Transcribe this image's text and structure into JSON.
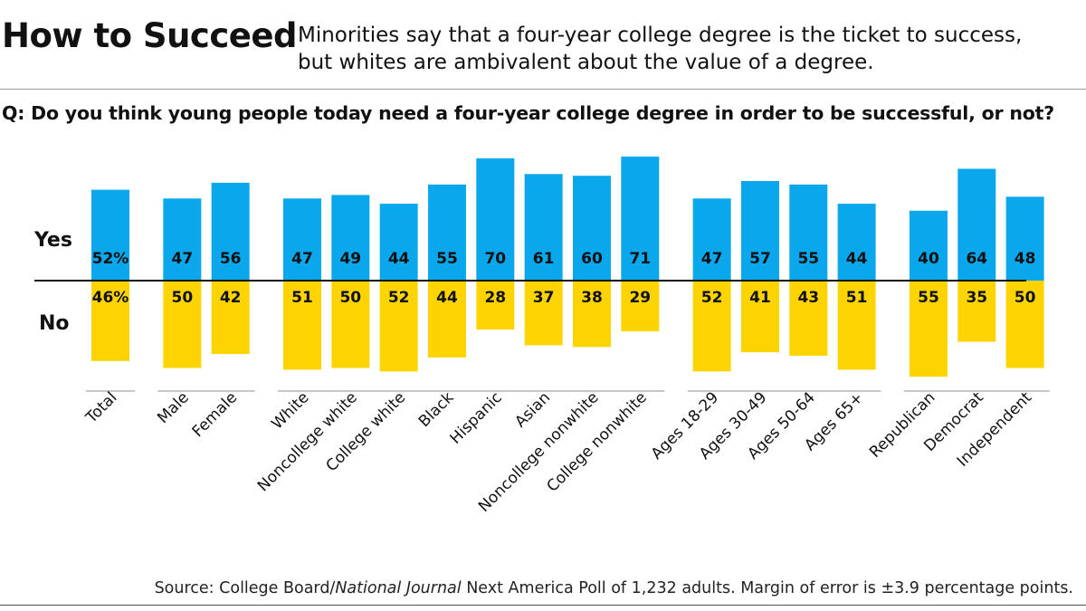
{
  "header": {
    "title": "How to Succeed",
    "subtitle_line1": "Minorities say that a four-year college degree is the ticket to success,",
    "subtitle_line2": "but whites are ambivalent about the value of a degree."
  },
  "question": "Q: Do you think young people today need a four-year college degree in order to be successful, or not?",
  "source": {
    "prefix": "Source: College Board/",
    "publication": "National Journal",
    "suffix": " Next America Poll of 1,232 adults. Margin of error is ±3.9 percentage points."
  },
  "colors": {
    "yes": "#0aa7ec",
    "no": "#fdd400",
    "axis": "#111111",
    "group_rule": "#8c8c8c"
  },
  "chart_data": {
    "type": "bar",
    "orientation": "diverging",
    "yes_label": "Yes",
    "no_label": "No",
    "categories": [
      "Total",
      "Male",
      "Female",
      "White",
      "Noncollege white",
      "College white",
      "Black",
      "Hispanic",
      "Asian",
      "Noncollege nonwhite",
      "College nonwhite",
      "Ages 18-29",
      "Ages 30-49",
      "Ages 50-64",
      "Ages 65+",
      "Republican",
      "Democrat",
      "Independent"
    ],
    "groups": [
      [
        "Total"
      ],
      [
        "Male",
        "Female"
      ],
      [
        "White",
        "Noncollege white",
        "College white",
        "Black",
        "Hispanic",
        "Asian",
        "Noncollege nonwhite",
        "College nonwhite"
      ],
      [
        "Ages 18-29",
        "Ages 30-49",
        "Ages 50-64",
        "Ages 65+"
      ],
      [
        "Republican",
        "Democrat",
        "Independent"
      ]
    ],
    "series": [
      {
        "name": "Yes",
        "values": [
          52,
          47,
          56,
          47,
          49,
          44,
          55,
          70,
          61,
          60,
          71,
          47,
          57,
          55,
          44,
          40,
          64,
          48
        ],
        "labels": [
          "52%",
          "47",
          "56",
          "47",
          "49",
          "44",
          "55",
          "70",
          "61",
          "60",
          "71",
          "47",
          "57",
          "55",
          "44",
          "40",
          "64",
          "48"
        ]
      },
      {
        "name": "No",
        "values": [
          46,
          50,
          42,
          51,
          50,
          52,
          44,
          28,
          37,
          38,
          29,
          52,
          41,
          43,
          51,
          55,
          35,
          50
        ],
        "labels": [
          "46%",
          "50",
          "42",
          "51",
          "50",
          "52",
          "44",
          "28",
          "37",
          "38",
          "29",
          "52",
          "41",
          "43",
          "51",
          "55",
          "35",
          "50"
        ]
      }
    ],
    "unit": "percent"
  }
}
